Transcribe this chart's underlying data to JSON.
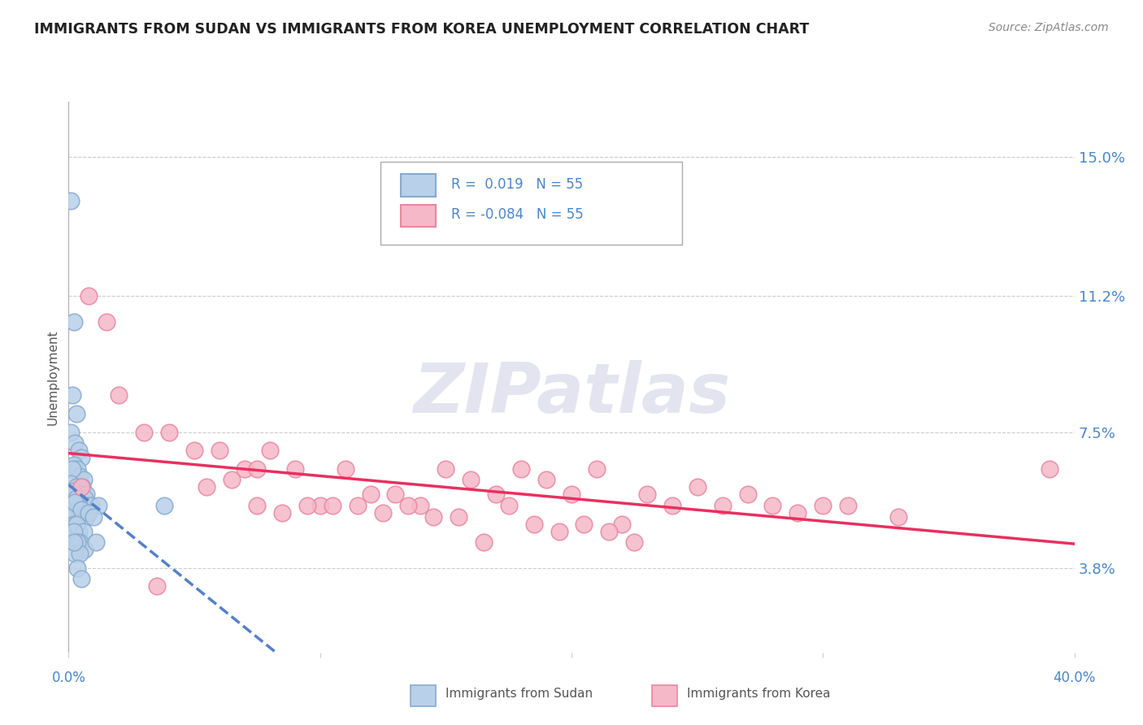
{
  "title": "IMMIGRANTS FROM SUDAN VS IMMIGRANTS FROM KOREA UNEMPLOYMENT CORRELATION CHART",
  "source": "Source: ZipAtlas.com",
  "ylabel": "Unemployment",
  "yticks": [
    3.8,
    7.5,
    11.2,
    15.0
  ],
  "ytick_labels": [
    "3.8%",
    "7.5%",
    "11.2%",
    "15.0%"
  ],
  "xlim": [
    0.0,
    40.0
  ],
  "ylim": [
    1.5,
    16.5
  ],
  "r_sudan": 0.019,
  "n_sudan": 55,
  "r_korea": -0.084,
  "n_korea": 55,
  "sudan_fill": "#b8d0e8",
  "sudan_edge": "#88aad0",
  "korea_fill": "#f5b8c8",
  "korea_edge": "#e888a0",
  "trend_sudan_color": "#5580c8",
  "trend_korea_color": "#e83060",
  "background_color": "#ffffff",
  "grid_color": "#cccccc",
  "title_color": "#222222",
  "axis_label_color": "#4a86c8",
  "watermark_color": "#e4e4f0",
  "sudan_x": [
    0.1,
    0.2,
    0.15,
    0.3,
    0.1,
    0.25,
    0.4,
    0.5,
    0.2,
    0.35,
    0.45,
    0.6,
    0.15,
    0.1,
    0.3,
    0.55,
    0.2,
    0.4,
    0.7,
    0.65,
    0.3,
    0.5,
    0.2,
    0.75,
    0.35,
    0.9,
    0.15,
    0.45,
    0.6,
    0.25,
    0.4,
    0.7,
    0.1,
    0.3,
    1.2,
    0.25,
    0.5,
    0.8,
    0.2,
    0.4,
    1.0,
    0.3,
    0.6,
    0.35,
    0.45,
    0.65,
    0.2,
    0.35,
    1.1,
    0.25,
    0.45,
    3.8,
    0.2,
    0.35,
    0.5
  ],
  "sudan_y": [
    13.8,
    10.5,
    8.5,
    8.0,
    7.5,
    7.2,
    7.0,
    6.8,
    6.6,
    6.5,
    6.3,
    6.2,
    6.5,
    6.1,
    6.0,
    6.0,
    5.9,
    5.8,
    5.8,
    5.7,
    5.6,
    5.5,
    5.8,
    5.5,
    5.5,
    5.5,
    5.4,
    5.3,
    5.3,
    5.3,
    5.5,
    5.2,
    5.8,
    5.7,
    5.5,
    5.6,
    5.4,
    5.3,
    5.0,
    4.8,
    5.2,
    5.0,
    4.8,
    4.5,
    4.5,
    4.3,
    4.8,
    4.5,
    4.5,
    4.2,
    4.2,
    5.5,
    4.5,
    3.8,
    3.5
  ],
  "korea_x": [
    0.5,
    0.8,
    1.5,
    2.0,
    3.0,
    4.0,
    5.0,
    6.0,
    7.0,
    7.5,
    8.0,
    9.0,
    10.0,
    11.0,
    12.0,
    13.0,
    14.0,
    15.0,
    16.0,
    17.0,
    18.0,
    19.0,
    20.0,
    21.0,
    22.0,
    23.0,
    24.0,
    25.0,
    26.0,
    27.0,
    28.0,
    29.0,
    30.0,
    31.0,
    33.0,
    5.5,
    6.5,
    7.5,
    8.5,
    9.5,
    10.5,
    11.5,
    12.5,
    13.5,
    14.5,
    15.5,
    16.5,
    17.5,
    18.5,
    19.5,
    20.5,
    21.5,
    22.5,
    39.0,
    3.5
  ],
  "korea_y": [
    6.0,
    11.2,
    10.5,
    8.5,
    7.5,
    7.5,
    7.0,
    7.0,
    6.5,
    6.5,
    7.0,
    6.5,
    5.5,
    6.5,
    5.8,
    5.8,
    5.5,
    6.5,
    6.2,
    5.8,
    6.5,
    6.2,
    5.8,
    6.5,
    5.0,
    5.8,
    5.5,
    6.0,
    5.5,
    5.8,
    5.5,
    5.3,
    5.5,
    5.5,
    5.2,
    6.0,
    6.2,
    5.5,
    5.3,
    5.5,
    5.5,
    5.5,
    5.3,
    5.5,
    5.2,
    5.2,
    4.5,
    5.5,
    5.0,
    4.8,
    5.0,
    4.8,
    4.5,
    6.5,
    3.3
  ],
  "legend_text_color": "#4a86c8",
  "legend_n_color": "#4a86c8"
}
